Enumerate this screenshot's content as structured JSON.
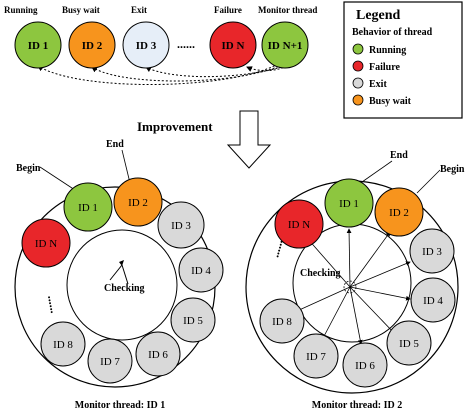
{
  "colors": {
    "running": "#8DC63F",
    "failure": "#E8262A",
    "exit": "#D9D9D9",
    "exit_top": "#E6EEF8",
    "busy_wait": "#F7941D",
    "stroke": "#000000"
  },
  "top": {
    "status_labels": [
      "Running",
      "Busy wait",
      "Exit",
      "Failure",
      "Monitor thread"
    ],
    "nodes": [
      {
        "id": "ID 1",
        "status": "running"
      },
      {
        "id": "ID 2",
        "status": "busy_wait"
      },
      {
        "id": "ID 3",
        "status": "exit"
      },
      {
        "id": "ID N",
        "status": "failure"
      },
      {
        "id": "ID N+1",
        "status": "running"
      }
    ],
    "ellipsis": "......"
  },
  "legend": {
    "title": "Legend",
    "subtitle": "Behavior of thread",
    "items": [
      {
        "label": "Running",
        "status": "running"
      },
      {
        "label": "Failure",
        "status": "failure"
      },
      {
        "label": "Exit",
        "status": "exit"
      },
      {
        "label": "Busy wait",
        "status": "busy_wait"
      }
    ]
  },
  "arrow_label": "Improvement",
  "left_ring": {
    "begin_label": "Begin",
    "end_label": "End",
    "checking_label": "Checking",
    "caption": "Monitor thread: ID 1",
    "nodes": [
      {
        "id": "ID 1",
        "status": "running"
      },
      {
        "id": "ID 2",
        "status": "busy_wait"
      },
      {
        "id": "ID 3",
        "status": "exit"
      },
      {
        "id": "ID 4",
        "status": "exit"
      },
      {
        "id": "ID 5",
        "status": "exit"
      },
      {
        "id": "ID 6",
        "status": "exit"
      },
      {
        "id": "ID 7",
        "status": "exit"
      },
      {
        "id": "ID 8",
        "status": "exit"
      },
      {
        "id": "ID N",
        "status": "failure"
      }
    ],
    "ellipsis": "......"
  },
  "right_ring": {
    "begin_label": "Begin",
    "end_label": "End",
    "checking_label": "Checking",
    "caption": "Monitor thread: ID 2",
    "nodes": [
      {
        "id": "ID 1",
        "status": "running"
      },
      {
        "id": "ID 2",
        "status": "busy_wait"
      },
      {
        "id": "ID 3",
        "status": "exit"
      },
      {
        "id": "ID 4",
        "status": "exit"
      },
      {
        "id": "ID 5",
        "status": "exit"
      },
      {
        "id": "ID 6",
        "status": "exit"
      },
      {
        "id": "ID 7",
        "status": "exit"
      },
      {
        "id": "ID 8",
        "status": "exit"
      },
      {
        "id": "ID N",
        "status": "failure"
      }
    ],
    "ellipsis": "......"
  }
}
